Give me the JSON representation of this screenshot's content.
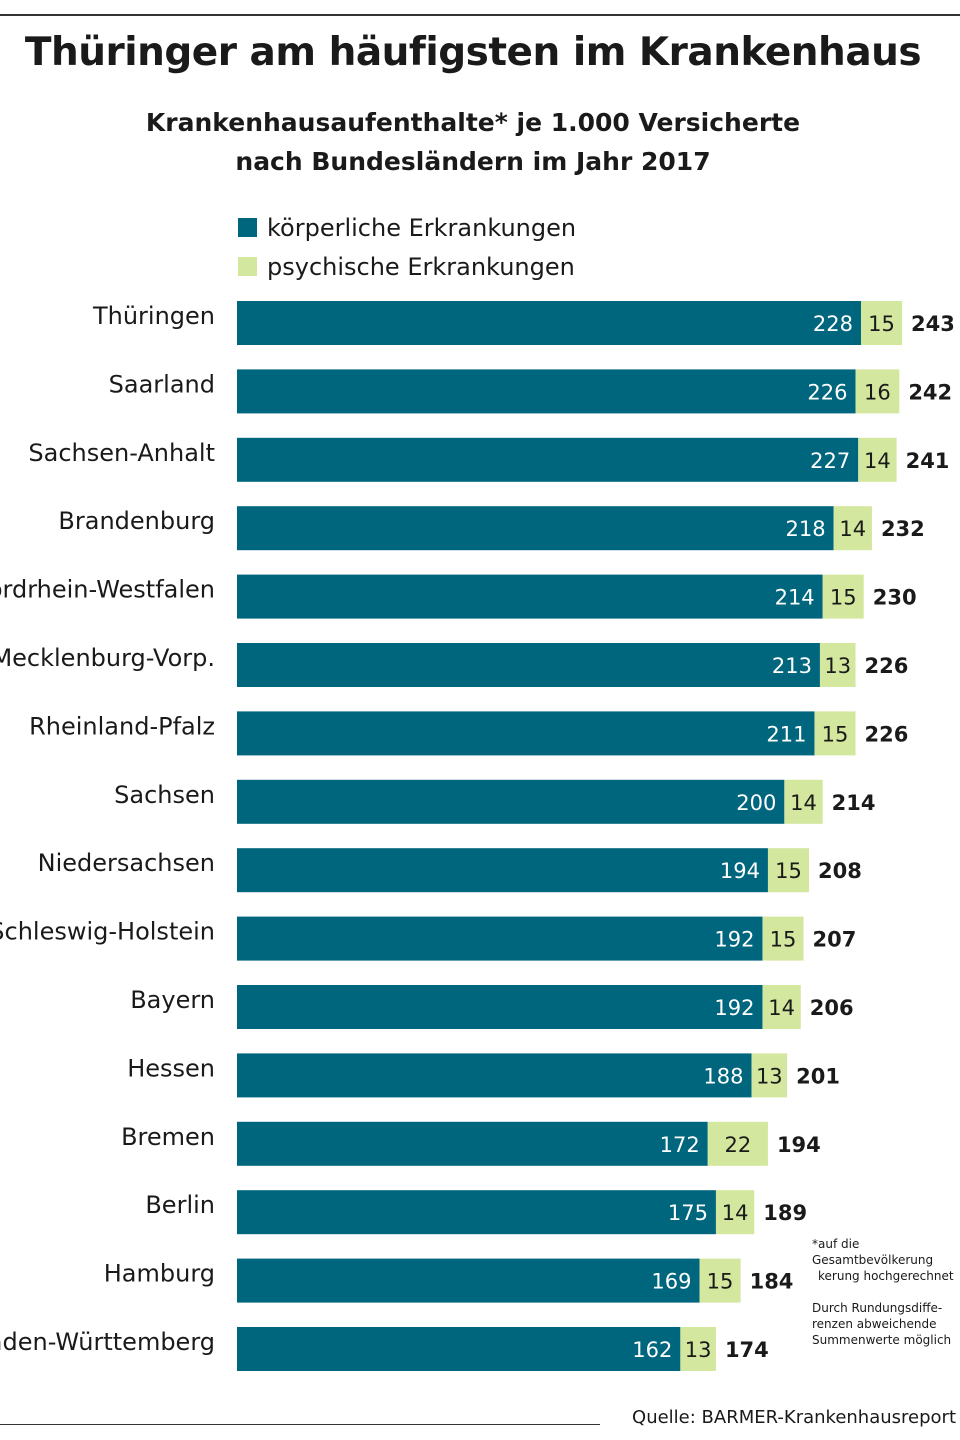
{
  "title": "Thüringer am häufigsten im Krankenhaus",
  "subtitle_line1": "Krankenhausaufenthalte* je 1.000 Versicherte",
  "subtitle_line2": "nach Bundesländern im Jahr 2017",
  "footnote_line1": "*auf die Gesamtbevölkerung",
  "footnote_line2": "kerung hochgerechnet",
  "rounding_line1": "Durch Rundungsdiffe-",
  "rounding_line2": "renzen abweichende",
  "rounding_line3": "Summenwerte möglich",
  "source": "Quelle: BARMER-Krankenhausreport",
  "colors": {
    "physical": "#00667e",
    "mental": "#d4e79e"
  },
  "chart_data": {
    "type": "bar",
    "orientation": "horizontal",
    "stacked": true,
    "title": "Thüringer am häufigsten im Krankenhaus",
    "categories": [
      "Thüringen",
      "Saarland",
      "Sachsen-Anhalt",
      "Brandenburg",
      "Nordrhein-Westfalen",
      "Mecklenburg-Vorp.",
      "Rheinland-Pfalz",
      "Sachsen",
      "Niedersachsen",
      "Schleswig-Holstein",
      "Bayern",
      "Hessen",
      "Bremen",
      "Berlin",
      "Hamburg",
      "Baden-Württemberg"
    ],
    "series": [
      {
        "name": "körperliche Erkrankungen",
        "values": [
          228,
          226,
          227,
          218,
          214,
          213,
          211,
          200,
          194,
          192,
          192,
          188,
          172,
          175,
          169,
          162
        ]
      },
      {
        "name": "psychische Erkrankungen",
        "values": [
          15,
          16,
          14,
          14,
          15,
          13,
          15,
          14,
          15,
          15,
          14,
          13,
          22,
          14,
          15,
          13
        ]
      }
    ],
    "totals": [
      243,
      242,
      241,
      232,
      230,
      226,
      226,
      214,
      208,
      207,
      206,
      201,
      194,
      189,
      184,
      174
    ],
    "legend_position": "top",
    "grid": false,
    "xlim": [
      0,
      243
    ]
  }
}
